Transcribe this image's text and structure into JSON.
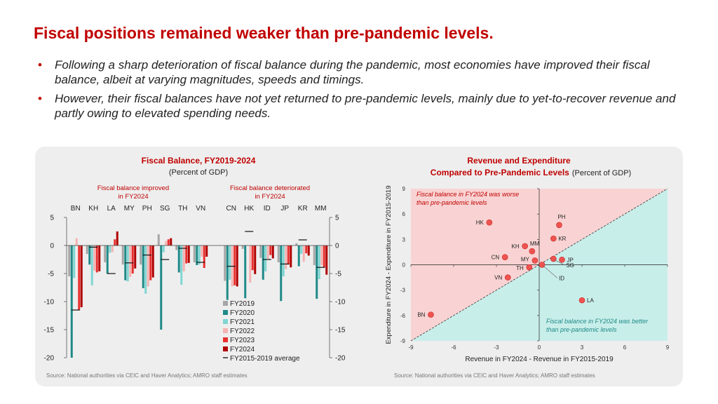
{
  "slide": {
    "title": "Fiscal positions remained weaker than pre-pandemic levels.",
    "bullets": [
      "Following a sharp deterioration of fiscal balance during the pandemic, most economies have improved their fiscal balance, albeit at varying magnitudes, speeds and timings.",
      "However, their fiscal balances have not yet returned to pre-pandemic levels, mainly due to yet-to-recover revenue and partly owing to elevated spending needs."
    ],
    "bullet_marker": "•"
  },
  "left_chart": {
    "title": "Fiscal Balance, FY2019-2024",
    "subtitle": "(Percent of GDP)",
    "group_improved": [
      "Fiscal balance improved",
      "in FY2024"
    ],
    "group_deteriorated": [
      "Fiscal balance deteriorated",
      "in FY2024"
    ],
    "source": "Source: National authorities via CEIC and Haver Analytics; AMRO staff estimates"
  },
  "right_chart": {
    "title_line1": "Revenue and Expenditure",
    "title_line2": "Compared to Pre-Pandemic Levels",
    "subtitle": "(Percent of GDP)",
    "annotation_worse": [
      "Fiscal balance in FY2024 was worse",
      "than pre-pandemic levels"
    ],
    "annotation_better": [
      "Fiscal balance in FY2024 was better",
      "than pre-pandemic levels"
    ],
    "source": "Source: National authorities via CEIC and Haver Analytics; AMRO staff estimates"
  },
  "colors": {
    "title_red": "#c00000",
    "FY2019": "#a6a6a6",
    "FY2020": "#1f8a87",
    "FY2021": "#7fd6d2",
    "FY2022": "#f5b3b3",
    "FY2023": "#e8302f",
    "FY2024": "#b00000",
    "worse_region": "#f9d3d3",
    "better_region": "#c8eeea",
    "point": "#ef5350"
  },
  "chart_data": [
    {
      "type": "bar",
      "title": "Fiscal Balance, FY2019-2024",
      "ylim": [
        -20,
        5
      ],
      "yticks": [
        5,
        0,
        -5,
        -10,
        -15,
        -20
      ],
      "legend_position": "bottom-right",
      "categories": [
        "BN",
        "KH",
        "LA",
        "MY",
        "PH",
        "SG",
        "TH",
        "VN",
        "CN",
        "HK",
        "ID",
        "JP",
        "KR",
        "MM"
      ],
      "series": [
        {
          "name": "FY2019",
          "values": [
            -5.5,
            -1.5,
            -3.0,
            -3.4,
            -3.4,
            2.0,
            -0.8,
            -3.0,
            -6.3,
            -0.6,
            -2.2,
            -3.0,
            0.4,
            -3.5
          ]
        },
        {
          "name": "FY2020",
          "values": [
            -20.0,
            -3.4,
            -5.0,
            -6.2,
            -7.6,
            -15.0,
            -4.8,
            -3.5,
            -9.7,
            -9.4,
            -6.1,
            -9.9,
            -3.7,
            -9.5
          ]
        },
        {
          "name": "FY2021",
          "values": [
            -5.8,
            -7.1,
            -1.3,
            -6.4,
            -8.6,
            -1.2,
            -7.0,
            -3.4,
            -6.1,
            0.0,
            -4.6,
            -5.5,
            -1.5,
            -6.0
          ]
        },
        {
          "name": "FY2022",
          "values": [
            1.3,
            -4.5,
            -1.2,
            -5.6,
            -7.3,
            0.8,
            -4.6,
            -2.0,
            -7.3,
            -6.6,
            -2.4,
            -4.2,
            -2.9,
            -3.5
          ]
        },
        {
          "name": "FY2023",
          "values": [
            -11.5,
            -4.8,
            1.1,
            -5.0,
            -6.2,
            1.1,
            -3.2,
            -4.0,
            -7.1,
            -4.4,
            -1.7,
            -3.4,
            -1.4,
            -3.9
          ]
        },
        {
          "name": "FY2024",
          "values": [
            -11.0,
            -4.6,
            2.5,
            -4.1,
            -5.7,
            1.3,
            -3.1,
            -2.0,
            -7.3,
            -5.1,
            -2.3,
            -3.9,
            -1.8,
            -5.2
          ]
        }
      ],
      "average_series": {
        "name": "FY2015-2019 average",
        "values": [
          -11.5,
          -0.3,
          -5.0,
          -3.1,
          -1.7,
          -2.5,
          -0.5,
          -3.0,
          -3.7,
          2.5,
          -2.5,
          -3.3,
          1.0,
          -3.9
        ]
      }
    },
    {
      "type": "scatter",
      "title": "Revenue and Expenditure Compared to Pre-Pandemic Levels",
      "subtitle": "(Percent of GDP)",
      "xlabel": "Revenue in FY2024 - Revenue in FY2015-2019",
      "ylabel": "Expenditure in FY2024 - Expenditure in FY2015-2019",
      "xlim": [
        -9,
        9
      ],
      "ylim": [
        -9,
        9
      ],
      "xticks": [
        -9,
        -6,
        -3,
        0,
        3,
        6,
        9
      ],
      "yticks": [
        9,
        6,
        3,
        0,
        -3,
        -6,
        -9
      ],
      "reference_line": "y = x",
      "points": [
        {
          "label": "PH",
          "x": 1.4,
          "y": 4.7
        },
        {
          "label": "HK",
          "x": -3.5,
          "y": 5.0
        },
        {
          "label": "KR",
          "x": 1.0,
          "y": 3.1
        },
        {
          "label": "KH",
          "x": -1.0,
          "y": 2.2
        },
        {
          "label": "MM",
          "x": -0.5,
          "y": 1.6
        },
        {
          "label": "CN",
          "x": -2.4,
          "y": 0.9
        },
        {
          "label": "MY",
          "x": -0.3,
          "y": 0.5
        },
        {
          "label": "JP",
          "x": 1.6,
          "y": 0.6
        },
        {
          "label": "TH",
          "x": -0.7,
          "y": -0.3
        },
        {
          "label": "SG",
          "x": 1.0,
          "y": 0.7
        },
        {
          "label": "ID",
          "x": 0.2,
          "y": 0.0
        },
        {
          "label": "VN",
          "x": -2.2,
          "y": -1.5
        },
        {
          "label": "BN",
          "x": -7.6,
          "y": -5.9
        },
        {
          "label": "LA",
          "x": 3.0,
          "y": -4.2
        }
      ]
    }
  ]
}
